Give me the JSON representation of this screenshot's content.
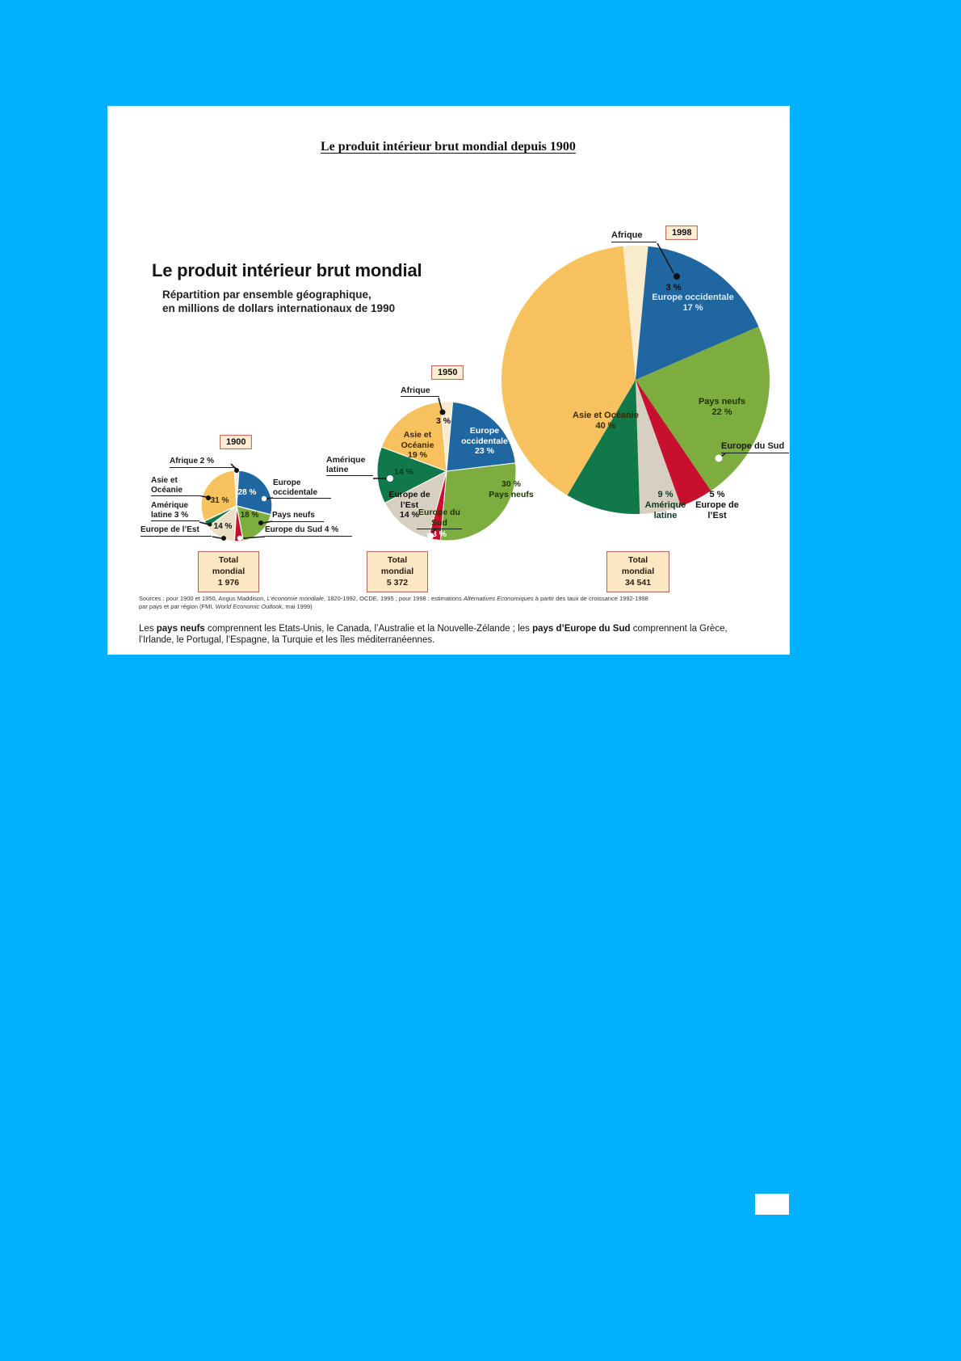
{
  "page": {
    "title": "Le produit intérieur brut mondial depuis 1900"
  },
  "infographic": {
    "heading": "Le produit intérieur brut mondial",
    "subtitle_line1": "Répartition par ensemble géographique,",
    "subtitle_line2": "en millions de dollars internationaux de 1990",
    "source": {
      "s1": "Sources : pour 1900 et 1950, Angus Maddison, ",
      "i1": "L’économie mondiale",
      "s2": ", 1820-1992, OCDE, 1995 ; pour 1998 : estimations ",
      "i2": "Alternatives Economiques",
      "s3": " à partir des taux de croissance 1992-1998",
      "s4": "par pays et par région (FMI, ",
      "i3": "World Economic Outlook",
      "s5": ", mai 1999)"
    },
    "note": {
      "p1": "Les ",
      "b1": "pays neufs",
      "p2": " comprennent les Etats-Unis, le Canada, l’Australie et la Nouvelle-Zélande ; les ",
      "b2": "pays d’Europe du Sud",
      "p3": " comprennent la Grèce, l’Irlande, le Portugal, l’Espagne, la Turquie et les îles méditerranéennes."
    }
  },
  "chart_data": [
    {
      "type": "pie",
      "year": "1900",
      "total_label": "Total mondial",
      "total_value": "1 976",
      "slices": [
        {
          "name": "Afrique",
          "value": 2,
          "pct": "2 %",
          "color": "#F9ECCD"
        },
        {
          "name": "Europe occidentale",
          "value": 28,
          "pct": "28 %",
          "color": "#1F67A0"
        },
        {
          "name": "Pays neufs",
          "value": 18,
          "pct": "18 %",
          "color": "#7DAD3F"
        },
        {
          "name": "Europe du Sud",
          "value": 4,
          "pct": "4 %",
          "color": "#C8102E"
        },
        {
          "name": "Europe de l’Est",
          "value": 14,
          "pct": "14 %",
          "color": "#EADFC4"
        },
        {
          "name": "Amérique latine",
          "value": 3,
          "pct": "3 %",
          "color": "#117849"
        },
        {
          "name": "Asie et Océanie",
          "value": 31,
          "pct": "31 %",
          "color": "#F7C25E"
        }
      ]
    },
    {
      "type": "pie",
      "year": "1950",
      "total_label": "Total mondial",
      "total_value": "5 372",
      "slices": [
        {
          "name": "Afrique",
          "value": 3,
          "pct": "3 %",
          "color": "#F9ECCD"
        },
        {
          "name": "Europe occidentale",
          "value": 23,
          "pct": "23 %",
          "color": "#1F67A0"
        },
        {
          "name": "Pays neufs",
          "value": 30,
          "pct": "30 %",
          "color": "#7DAD3F"
        },
        {
          "name": "Europe du Sud",
          "value": 3,
          "pct": "3 %",
          "color": "#C8102E"
        },
        {
          "name": "Europe de l’Est",
          "value": 14,
          "pct": "14 %",
          "color": "#D7CFC1"
        },
        {
          "name": "Amérique latine",
          "value": 14,
          "pct": "14 %",
          "color": "#117849"
        },
        {
          "name": "Asie et Océanie",
          "value": 19,
          "pct": "19 %",
          "color": "#F7C25E"
        }
      ]
    },
    {
      "type": "pie",
      "year": "1998",
      "total_label": "Total mondial",
      "total_value": "34 541",
      "slices": [
        {
          "name": "Afrique",
          "value": 3,
          "pct": "3 %",
          "color": "#F9ECCD"
        },
        {
          "name": "Europe occidentale",
          "value": 17,
          "pct": "17 %",
          "color": "#1F67A0"
        },
        {
          "name": "Pays neufs",
          "value": 22,
          "pct": "22 %",
          "color": "#7DAD3F"
        },
        {
          "name": "Europe du Sud",
          "value": 4,
          "pct": "4 %",
          "color": "#C8102E"
        },
        {
          "name": "Europe de l’Est",
          "value": 5,
          "pct": "5 %",
          "color": "#D7CFC1"
        },
        {
          "name": "Amérique latine",
          "value": 9,
          "pct": "9 %",
          "color": "#117849"
        },
        {
          "name": "Asie et Océanie",
          "value": 40,
          "pct": "40 %",
          "color": "#F7C25E"
        }
      ]
    }
  ]
}
